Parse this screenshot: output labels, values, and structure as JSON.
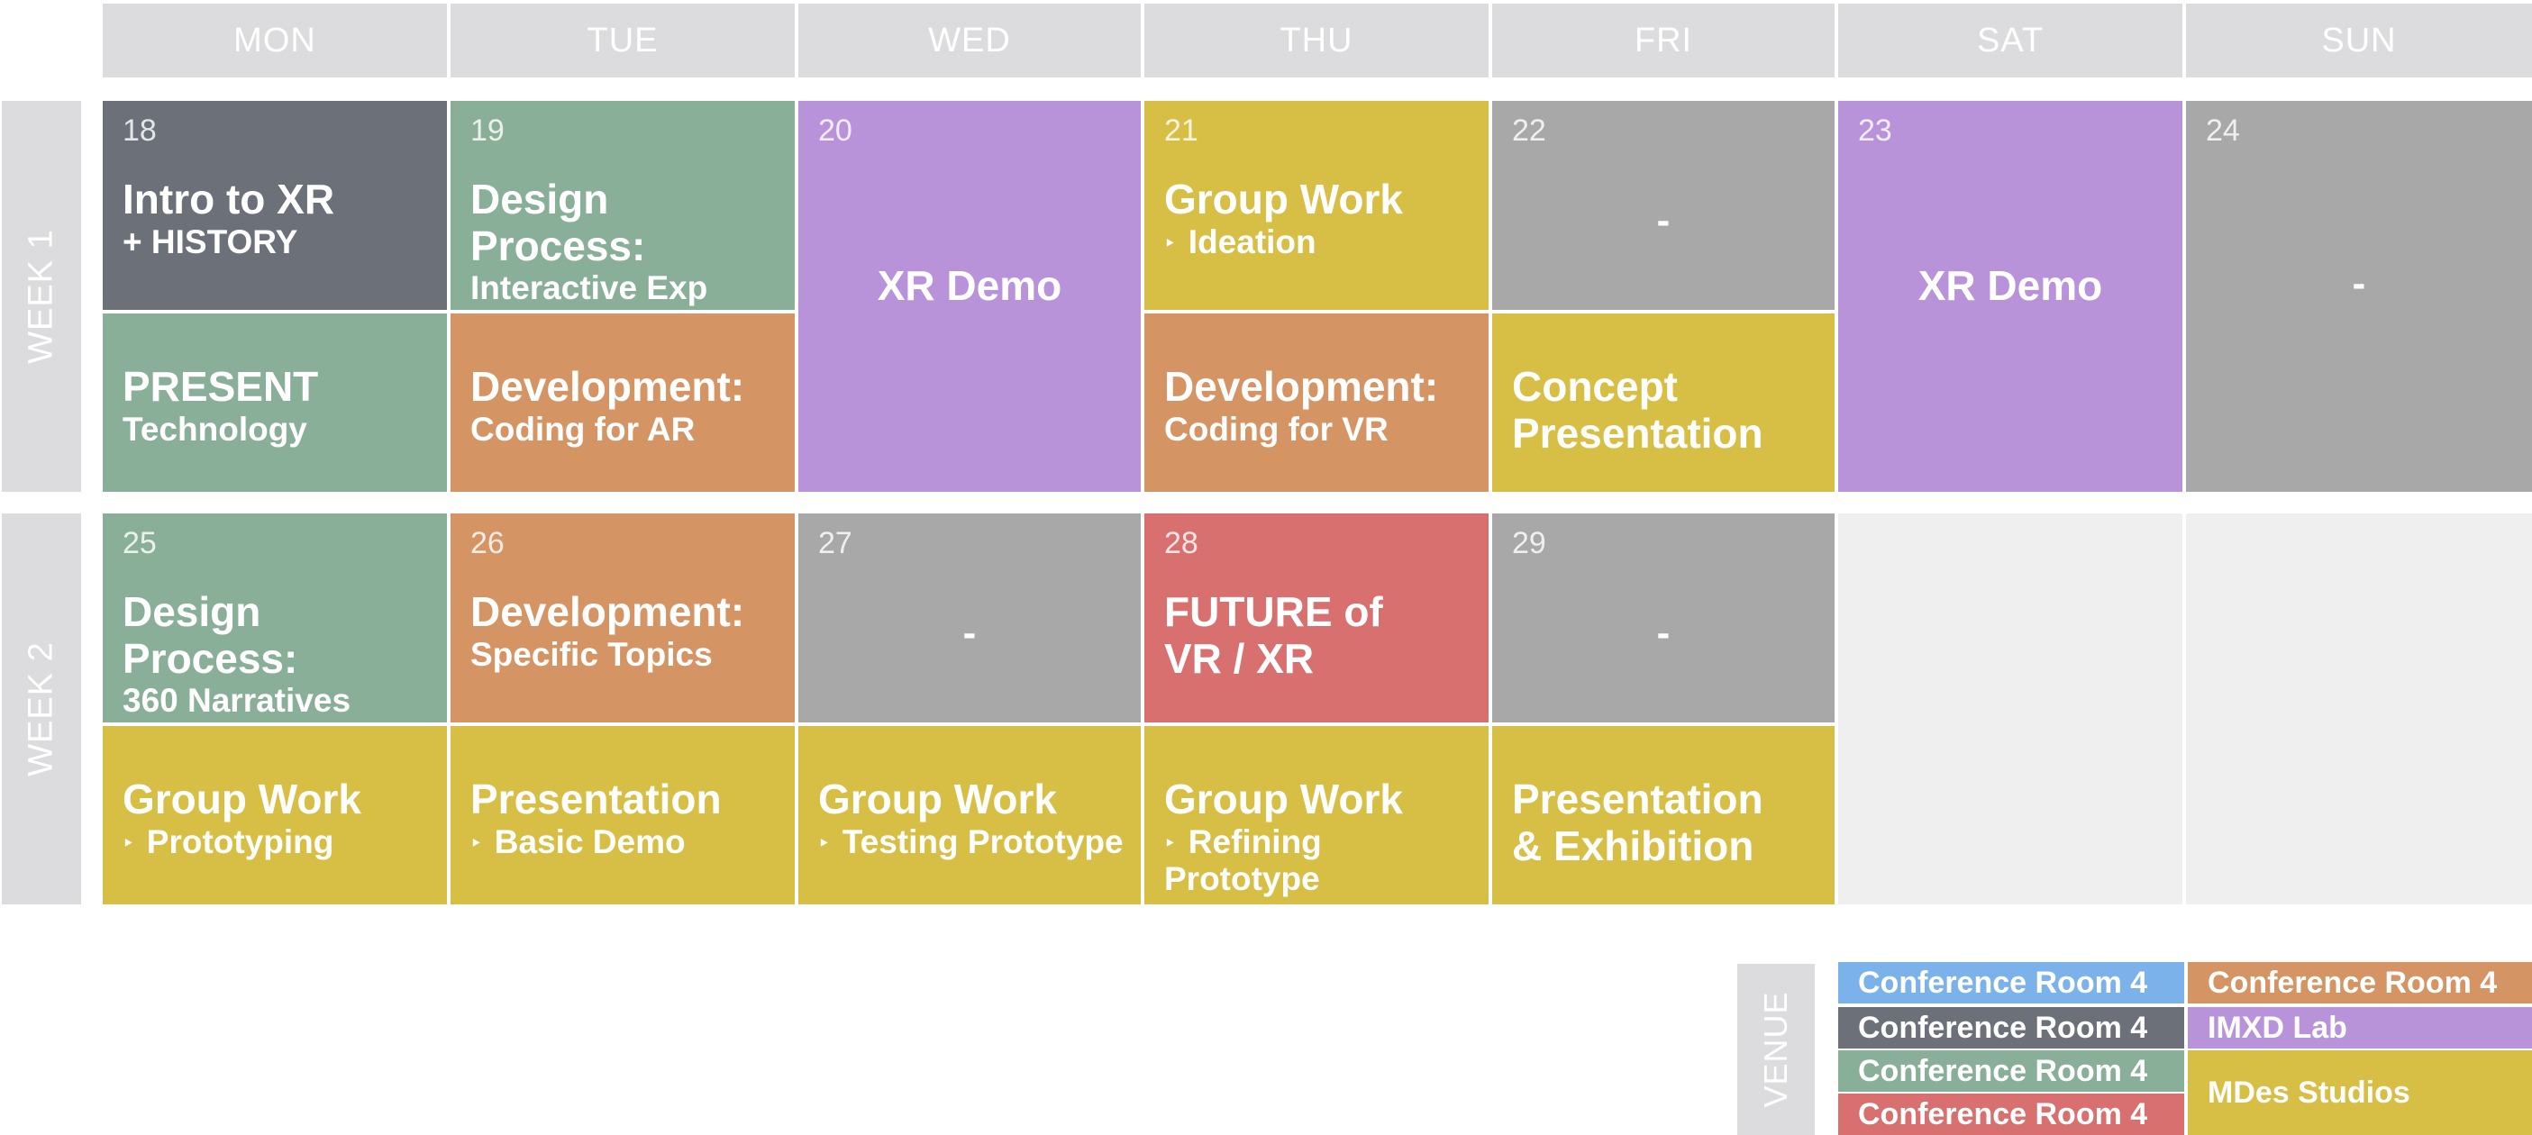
{
  "days": [
    "MON",
    "TUE",
    "WED",
    "THU",
    "FRI",
    "SAT",
    "SUN"
  ],
  "weeks": [
    "WEEK 1",
    "WEEK 2"
  ],
  "week1": {
    "d18": {
      "num": "18",
      "title": "Intro to XR",
      "sub": "+ HISTORY"
    },
    "mon_pm": {
      "title": "PRESENT",
      "sub": "Technology"
    },
    "d19": {
      "num": "19",
      "title": "Design Process:",
      "sub": "Interactive Exp"
    },
    "tue_pm": {
      "title": "Development:",
      "sub": "Coding for AR"
    },
    "d20": {
      "num": "20",
      "title": "XR Demo"
    },
    "d21": {
      "num": "21",
      "title": "Group Work",
      "sub": "Ideation",
      "bullet": "‣"
    },
    "thu_pm": {
      "title": "Development:",
      "sub": "Coding for VR"
    },
    "d22": {
      "num": "22",
      "title": "-"
    },
    "fri_pm": {
      "title": "Concept",
      "sub": "Presentation"
    },
    "d23": {
      "num": "23",
      "title": "XR Demo"
    },
    "d24": {
      "num": "24",
      "title": "-"
    }
  },
  "week2": {
    "d25": {
      "num": "25",
      "title": "Design Process:",
      "sub": "360 Narratives"
    },
    "mon_pm": {
      "title": "Group Work",
      "sub": "Prototyping",
      "bullet": "‣"
    },
    "d26": {
      "num": "26",
      "title": "Development:",
      "sub": "Specific Topics"
    },
    "tue_pm": {
      "title": "Presentation",
      "sub": "Basic Demo",
      "bullet": "‣"
    },
    "d27": {
      "num": "27",
      "title": "-"
    },
    "wed_pm": {
      "title": "Group Work",
      "sub": "Testing Prototype",
      "bullet": "‣"
    },
    "d28": {
      "num": "28",
      "title": "FUTURE of",
      "sub": "VR / XR"
    },
    "thu_pm": {
      "title": "Group Work",
      "sub": "Refining Prototype",
      "bullet": "‣"
    },
    "d29": {
      "num": "29",
      "title": "-"
    },
    "fri_pm": {
      "title": "Presentation",
      "sub": "& Exhibition"
    }
  },
  "venue": {
    "label": "VENUE",
    "items": [
      "Conference Room 4",
      "Conference Room 4",
      "Conference Room 4",
      "Conference Room 4",
      "Conference Room 4",
      "IMXD Lab",
      "MDes Studios"
    ]
  },
  "colors": {
    "dark": "#6b7079",
    "green": "#8aaf99",
    "orange": "#d49463",
    "purple": "#b993da",
    "yellow": "#d7bf46",
    "gray": "#a7a8a7",
    "red": "#d87070",
    "blue": "#7cb2ea",
    "header": "#dcdcde"
  }
}
